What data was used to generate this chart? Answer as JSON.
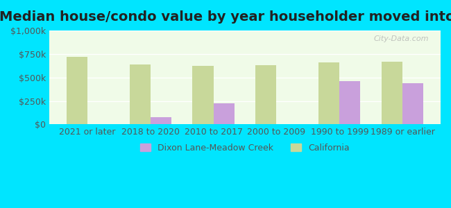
{
  "title": "Median house/condo value by year householder moved into unit",
  "categories": [
    "2021 or later",
    "2018 to 2020",
    "2010 to 2017",
    "2000 to 2009",
    "1990 to 1999",
    "1989 or earlier"
  ],
  "dixon_values": [
    null,
    75000,
    225000,
    null,
    460000,
    440000
  ],
  "california_values": [
    720000,
    640000,
    620000,
    630000,
    660000,
    665000
  ],
  "dixon_color": "#c9a0dc",
  "california_color": "#c8d89a",
  "background_color": "#00e5ff",
  "plot_bg_color": "#f0fbe8",
  "ylim": [
    0,
    1000000
  ],
  "yticks": [
    0,
    250000,
    500000,
    750000,
    1000000
  ],
  "ytick_labels": [
    "$0",
    "$250k",
    "$500k",
    "$750k",
    "$1,000k"
  ],
  "legend_dixon": "Dixon Lane-Meadow Creek",
  "legend_california": "California",
  "watermark": "City-Data.com",
  "title_fontsize": 14,
  "tick_fontsize": 9,
  "legend_fontsize": 9
}
